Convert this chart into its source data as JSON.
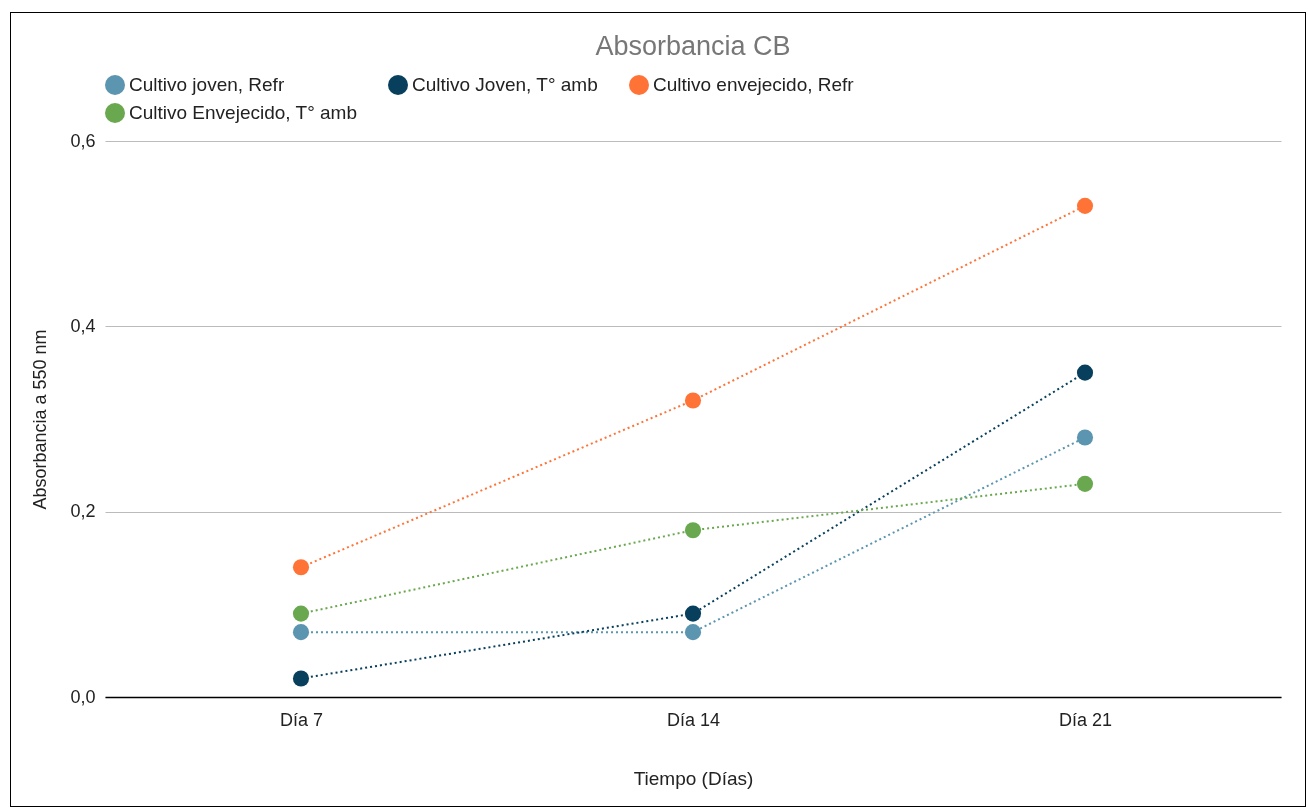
{
  "chart_data": {
    "type": "line",
    "title": "Absorbancia CB",
    "xlabel": "Tiempo (Días)",
    "ylabel": "Absorbancia a 550 nm",
    "categories": [
      "Día 7",
      "Día 14",
      "Día 21"
    ],
    "series": [
      {
        "name": "Cultivo joven, Refr",
        "color": "#5b95b0",
        "values": [
          0.07,
          0.07,
          0.28
        ]
      },
      {
        "name": "Cultivo Joven, T° amb",
        "color": "#073f5c",
        "values": [
          0.02,
          0.09,
          0.35
        ]
      },
      {
        "name": "Cultivo envejecido, Refr",
        "color": "#ff7337",
        "values": [
          0.14,
          0.32,
          0.53
        ]
      },
      {
        "name": "Cultivo Envejecido, T° amb",
        "color": "#6aa84f",
        "values": [
          0.09,
          0.18,
          0.23
        ]
      }
    ],
    "ylim": [
      0,
      0.6
    ],
    "yticks": [
      {
        "value": 0,
        "label": "0,0"
      },
      {
        "value": 0.2,
        "label": "0,2"
      },
      {
        "value": 0.4,
        "label": "0,4"
      },
      {
        "value": 0.6,
        "label": "0,6"
      }
    ],
    "grid": "y",
    "legend": "top",
    "marker": "circle",
    "line_style": "dotted"
  }
}
